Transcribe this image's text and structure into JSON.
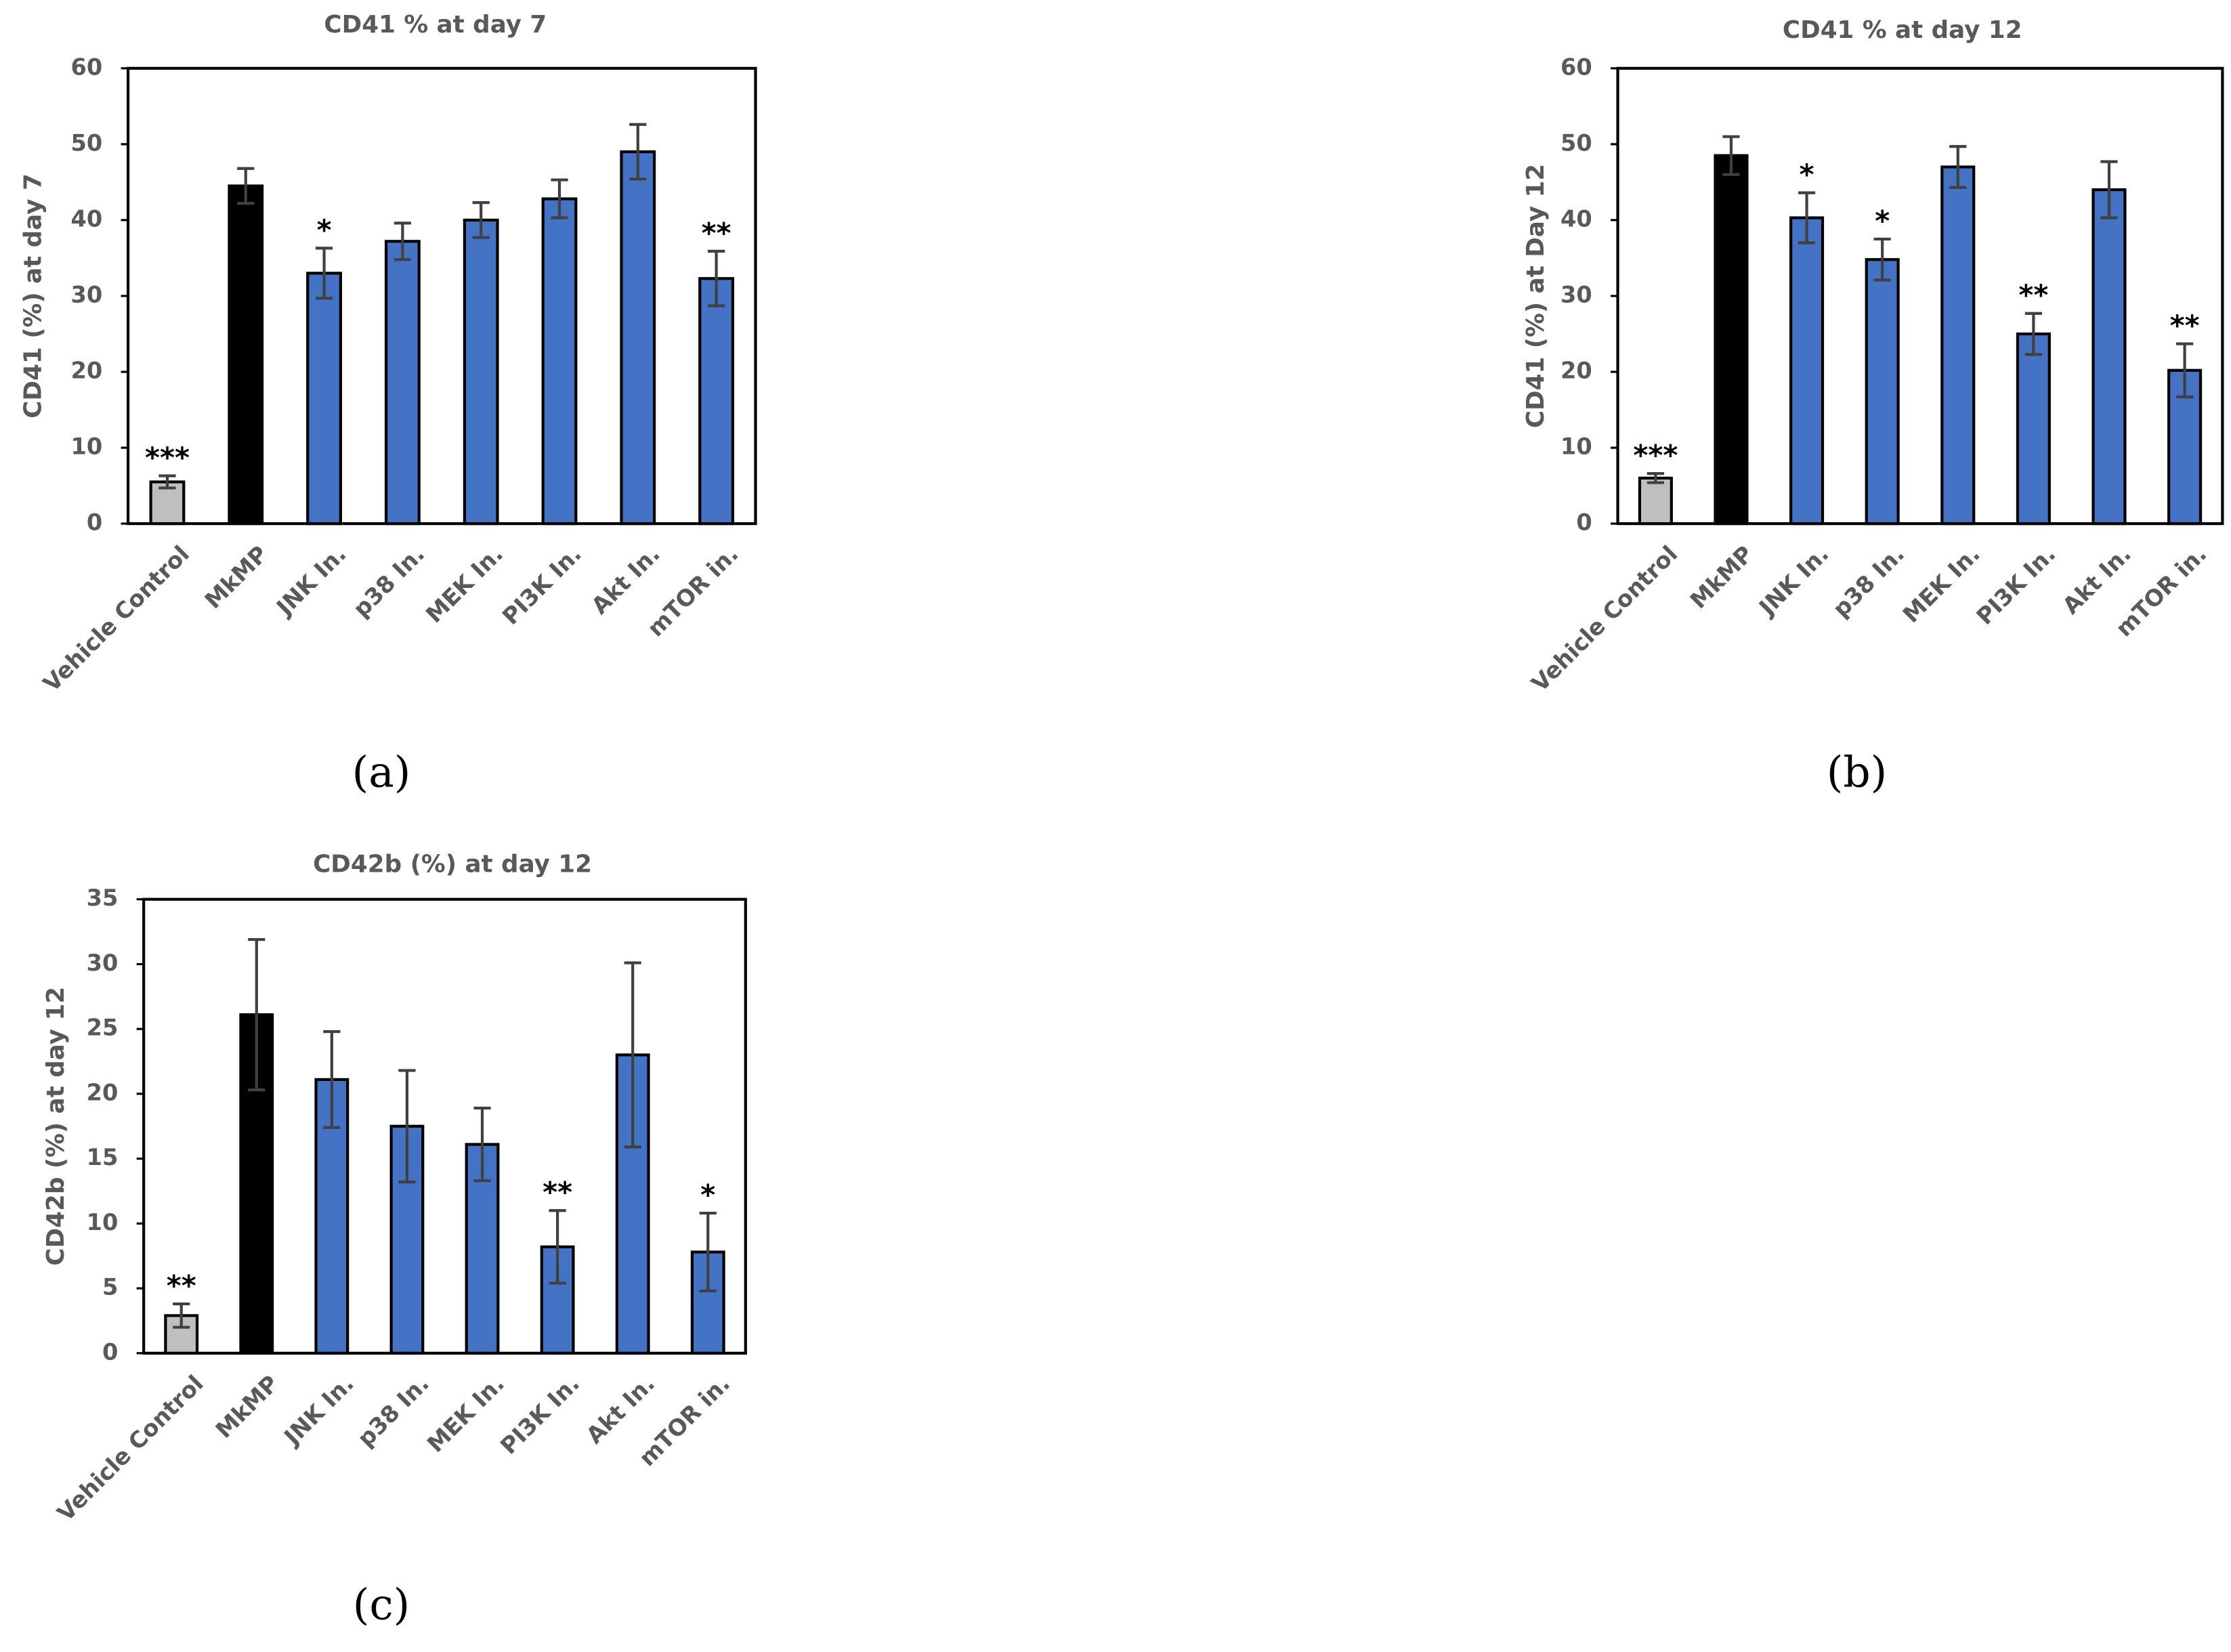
{
  "chart_data": [
    {
      "type": "bar",
      "title": "CD41 % at day 7",
      "y_label": "CD41 (%) at day 7",
      "panel_label": "(a)",
      "categories": [
        "Vehicle Control",
        "MkMP",
        "JNK In.",
        "p38 In.",
        "MEK In.",
        "PI3K In.",
        "Akt In.",
        "mTOR in."
      ],
      "values": [
        5.5,
        44.5,
        33,
        37.2,
        40,
        42.8,
        49,
        32.3
      ],
      "errors": [
        0.8,
        2.3,
        3.3,
        2.4,
        2.3,
        2.5,
        3.6,
        3.6
      ],
      "annotations": [
        "***",
        null,
        "*",
        null,
        null,
        null,
        null,
        "**"
      ],
      "colors": [
        "#bfbfbf",
        "#000000",
        "#4472c4",
        "#4472c4",
        "#4472c4",
        "#4472c4",
        "#4472c4",
        "#4472c4"
      ],
      "ylim": [
        0,
        60
      ],
      "yticks": [
        0,
        10,
        20,
        30,
        40,
        50,
        60
      ]
    },
    {
      "type": "bar",
      "title": "CD41 % at day 12",
      "y_label": "CD41 (%) at Day 12",
      "panel_label": "(b)",
      "categories": [
        "Vehicle Control",
        "MkMP",
        "JNK In.",
        "p38 In.",
        "MEK In.",
        "PI3K In.",
        "Akt In.",
        "mTOR in."
      ],
      "values": [
        6,
        48.5,
        40.3,
        34.8,
        47,
        25,
        44,
        20.2
      ],
      "errors": [
        0.6,
        2.5,
        3.3,
        2.7,
        2.7,
        2.7,
        3.7,
        3.5
      ],
      "annotations": [
        "***",
        null,
        "*",
        "*",
        null,
        "**",
        null,
        "**"
      ],
      "colors": [
        "#bfbfbf",
        "#000000",
        "#4472c4",
        "#4472c4",
        "#4472c4",
        "#4472c4",
        "#4472c4",
        "#4472c4"
      ],
      "ylim": [
        0,
        60
      ],
      "yticks": [
        0,
        10,
        20,
        30,
        40,
        50,
        60
      ]
    },
    {
      "type": "bar",
      "title": "CD42b (%) at day 12",
      "y_label": "CD42b (%) at day 12",
      "panel_label": "(c)",
      "categories": [
        "Vehicle Control",
        "MkMP",
        "JNK In.",
        "p38 In.",
        "MEK In.",
        "PI3K In.",
        "Akt In.",
        "mTOR in."
      ],
      "values": [
        2.9,
        26.1,
        21.1,
        17.5,
        16.1,
        8.2,
        23,
        7.8
      ],
      "errors": [
        0.9,
        5.8,
        3.7,
        4.3,
        2.8,
        2.8,
        7.1,
        3
      ],
      "annotations": [
        "**",
        null,
        null,
        null,
        null,
        "**",
        null,
        "*"
      ],
      "colors": [
        "#bfbfbf",
        "#000000",
        "#4472c4",
        "#4472c4",
        "#4472c4",
        "#4472c4",
        "#4472c4",
        "#4472c4"
      ],
      "ylim": [
        0,
        35
      ],
      "yticks": [
        0,
        5,
        10,
        15,
        20,
        25,
        30,
        35
      ]
    }
  ]
}
